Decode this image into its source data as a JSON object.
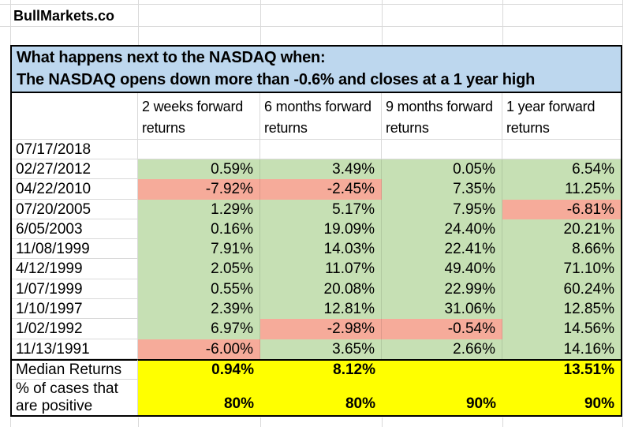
{
  "brand": "BullMarkets.co",
  "title": {
    "line1": "What happens next to the NASDAQ when:",
    "line2": "The NASDAQ opens down more than -0.6% and closes at a 1 year high"
  },
  "table": {
    "column_headers": [
      "2 weeks forward returns",
      "6 months forward returns",
      "9 months forward returns",
      "1 year forward returns"
    ],
    "rows": [
      {
        "date": "07/17/2018",
        "values": [
          "",
          "",
          "",
          ""
        ],
        "states": [
          "empty",
          "empty",
          "empty",
          "empty"
        ]
      },
      {
        "date": "02/27/2012",
        "values": [
          "0.59%",
          "3.49%",
          "0.05%",
          "6.54%"
        ],
        "states": [
          "pos",
          "pos",
          "pos",
          "pos"
        ]
      },
      {
        "date": "04/22/2010",
        "values": [
          "-7.92%",
          "-2.45%",
          "7.35%",
          "11.25%"
        ],
        "states": [
          "neg",
          "neg",
          "pos",
          "pos"
        ]
      },
      {
        "date": "07/20/2005",
        "values": [
          "1.29%",
          "5.17%",
          "7.95%",
          "-6.81%"
        ],
        "states": [
          "pos",
          "pos",
          "pos",
          "neg"
        ]
      },
      {
        "date": "6/05/2003",
        "values": [
          "0.16%",
          "19.09%",
          "24.40%",
          "20.21%"
        ],
        "states": [
          "pos",
          "pos",
          "pos",
          "pos"
        ]
      },
      {
        "date": "11/08/1999",
        "values": [
          "7.91%",
          "14.03%",
          "22.41%",
          "8.66%"
        ],
        "states": [
          "pos",
          "pos",
          "pos",
          "pos"
        ]
      },
      {
        "date": "4/12/1999",
        "values": [
          "2.05%",
          "11.07%",
          "49.40%",
          "71.10%"
        ],
        "states": [
          "pos",
          "pos",
          "pos",
          "pos"
        ]
      },
      {
        "date": "1/07/1999",
        "values": [
          "0.55%",
          "20.08%",
          "22.99%",
          "60.24%"
        ],
        "states": [
          "pos",
          "pos",
          "pos",
          "pos"
        ]
      },
      {
        "date": "1/10/1997",
        "values": [
          "2.39%",
          "12.81%",
          "31.06%",
          "12.85%"
        ],
        "states": [
          "pos",
          "pos",
          "pos",
          "pos"
        ]
      },
      {
        "date": "1/02/1992",
        "values": [
          "6.97%",
          "-2.98%",
          "-0.54%",
          "14.56%"
        ],
        "states": [
          "pos",
          "neg",
          "neg",
          "pos"
        ]
      },
      {
        "date": "11/13/1991",
        "values": [
          "-6.00%",
          "3.65%",
          "2.66%",
          "14.16%"
        ],
        "states": [
          "neg",
          "pos",
          "pos",
          "pos"
        ]
      }
    ],
    "summary": [
      {
        "label": "Median Returns",
        "values": [
          "0.94%",
          "8.12%",
          "",
          "13.51%"
        ]
      },
      {
        "label": "% of cases that are positive",
        "values": [
          "80%",
          "80%",
          "90%",
          "90%"
        ]
      }
    ]
  },
  "colors": {
    "positive_fill": "#C6E0B4",
    "negative_fill": "#F6AB9A",
    "highlight_fill": "#FFFF00",
    "title_fill": "#BDD7EE",
    "gridline": "#D9D9D9"
  }
}
